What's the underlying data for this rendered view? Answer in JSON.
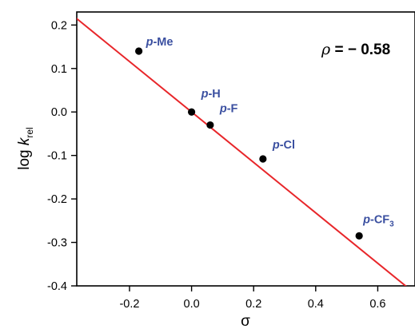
{
  "chart_data": {
    "type": "scatter",
    "title": "",
    "xlabel": "σ",
    "ylabel": {
      "main": "log ",
      "italic": "k",
      "subscript": "rel"
    },
    "xlim": [
      -0.37,
      0.72
    ],
    "ylim": [
      -0.4,
      0.23
    ],
    "xticks": [
      -0.2,
      0.0,
      0.2,
      0.4,
      0.6
    ],
    "xtick_labels": [
      "-0.2",
      "0.0",
      "0.2",
      "0.4",
      "0.6"
    ],
    "yticks": [
      0.2,
      0.1,
      0.0,
      -0.1,
      -0.2,
      -0.3,
      -0.4
    ],
    "ytick_labels": [
      "0.2",
      "0.1",
      "0.0",
      "-0.1",
      "-0.2",
      "-0.3",
      "-0.4"
    ],
    "grid": false,
    "points": [
      {
        "label_italic": "p",
        "label_rest": "-Me",
        "label_sub": "",
        "x": -0.17,
        "y": 0.14
      },
      {
        "label_italic": "p",
        "label_rest": "-H",
        "label_sub": "",
        "x": 0.0,
        "y": 0.0
      },
      {
        "label_italic": "p",
        "label_rest": "-F",
        "label_sub": "",
        "x": 0.06,
        "y": -0.03
      },
      {
        "label_italic": "p",
        "label_rest": "-Cl",
        "label_sub": "",
        "x": 0.23,
        "y": -0.108
      },
      {
        "label_italic": "p",
        "label_rest": "-CF",
        "label_sub": "3",
        "x": 0.54,
        "y": -0.285
      }
    ],
    "fit_line": {
      "slope": -0.58,
      "intercept": 0.0,
      "color": "#e8262a"
    },
    "annotation": {
      "symbol": "ρ",
      "text": " = − 0.58",
      "color": "#e8262a"
    },
    "colors": {
      "point": "#000000",
      "label": "#3a4fa0",
      "line": "#e8262a",
      "axis": "#000000"
    }
  }
}
